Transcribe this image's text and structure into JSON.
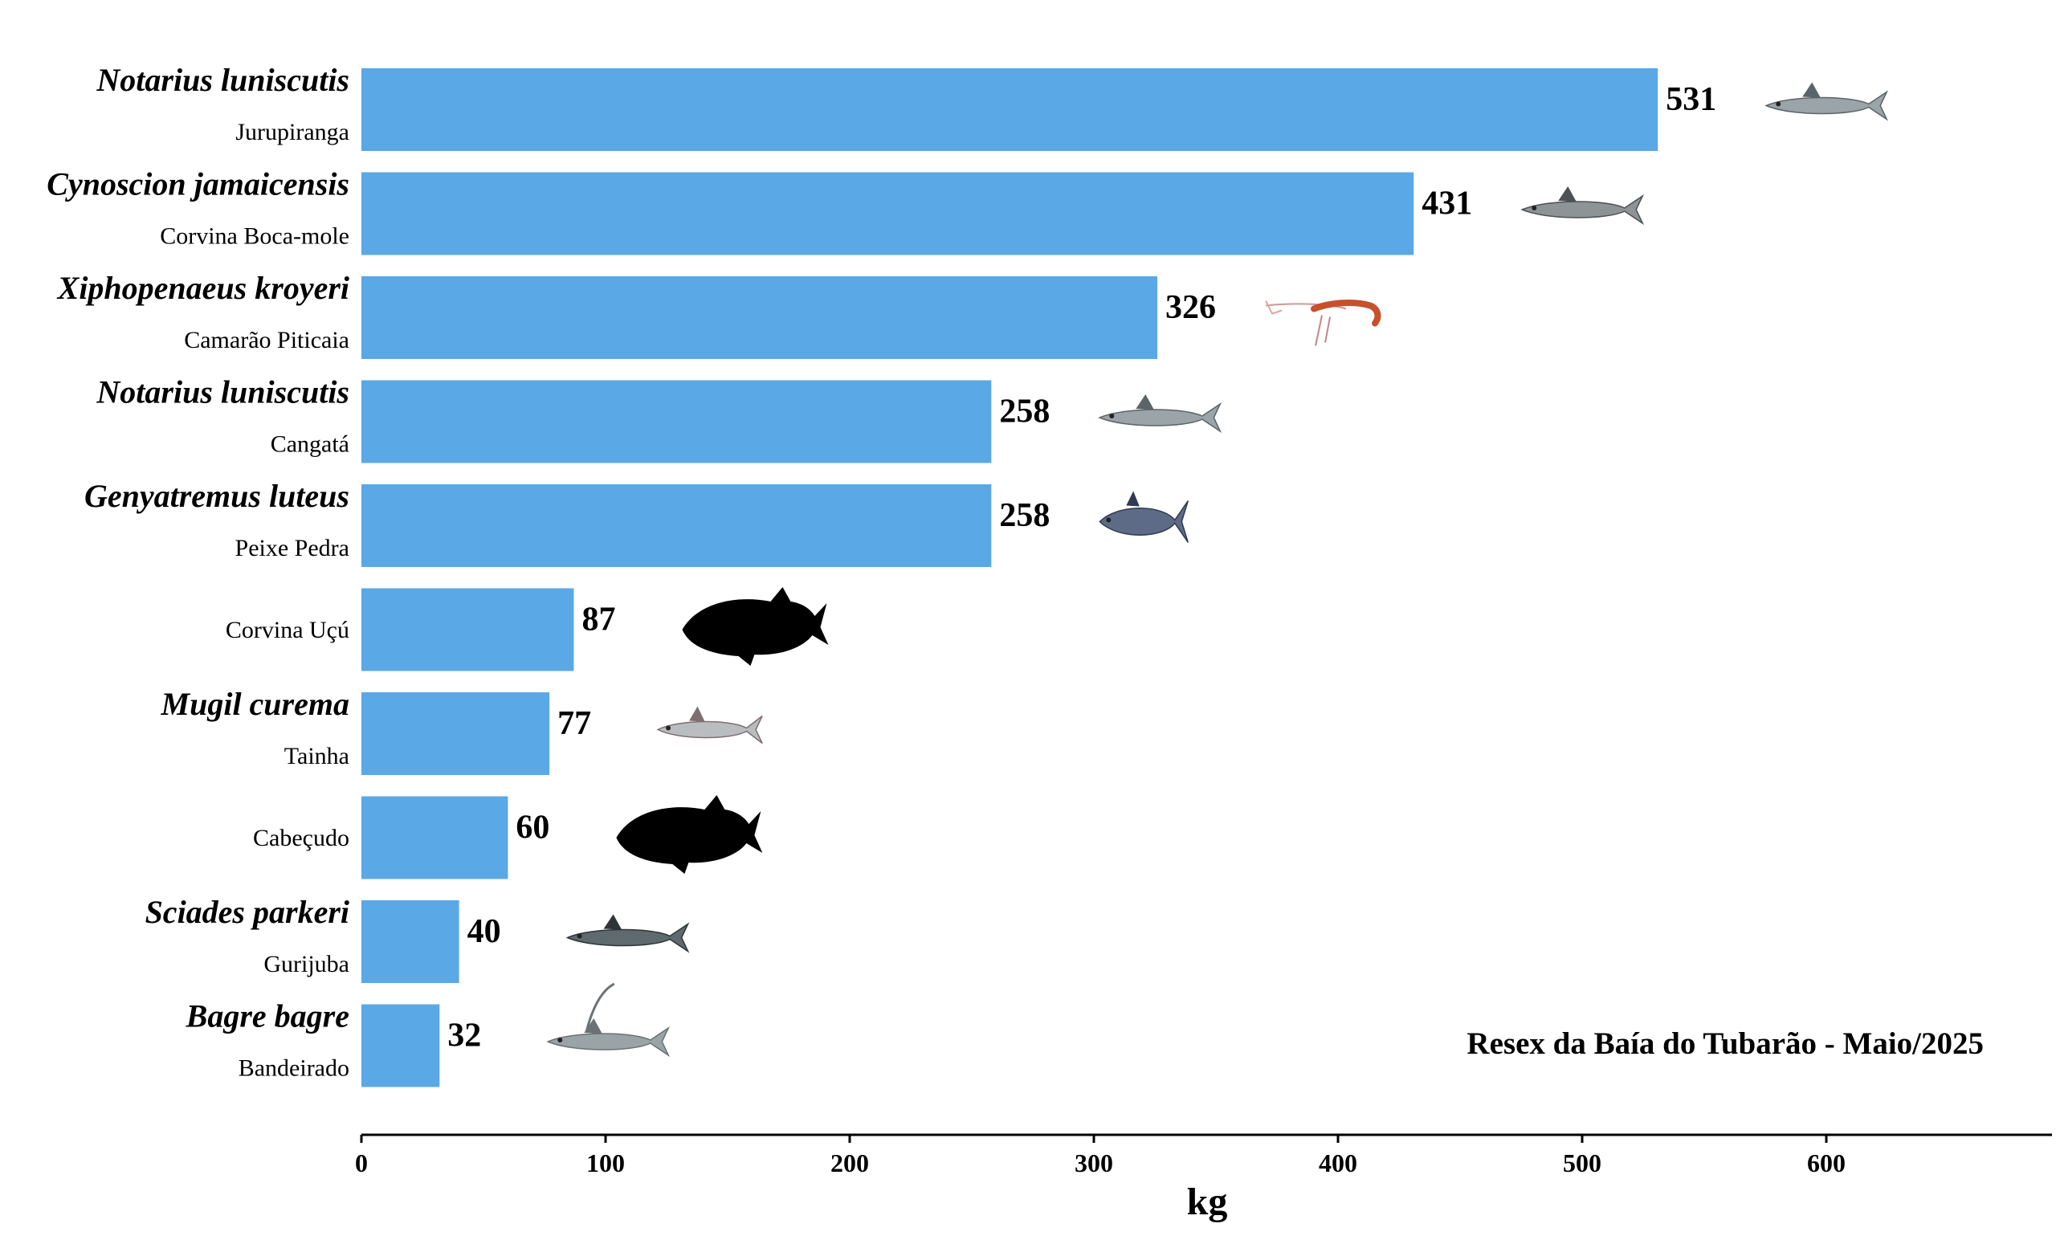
{
  "chart_data": {
    "type": "bar",
    "orientation": "horizontal",
    "title": "",
    "annotation": "Resex da Baía do Tubarão - Maio/2025",
    "xlabel": "kg",
    "ylabel": "",
    "xlim": [
      0,
      690
    ],
    "xticks": [
      0,
      100,
      200,
      300,
      400,
      500,
      600
    ],
    "grid": false,
    "bar_color": "#5aa8e6",
    "categories": [
      {
        "scientific": "Notarius luniscutis",
        "common": "Jurupiranga",
        "value": 531,
        "icon": "catfish-icon"
      },
      {
        "scientific": "Cynoscion jamaicensis",
        "common": "Corvina Boca-mole",
        "value": 431,
        "icon": "weakfish-icon"
      },
      {
        "scientific": "Xiphopenaeus kroyeri",
        "common": "Camarão Piticaia",
        "value": 326,
        "icon": "shrimp-icon"
      },
      {
        "scientific": "Notarius luniscutis",
        "common": "Cangatá",
        "value": 258,
        "icon": "catfish-icon"
      },
      {
        "scientific": "Genyatremus luteus",
        "common": "Peixe Pedra",
        "value": 258,
        "icon": "grunt-fish-icon"
      },
      {
        "scientific": "",
        "common": "Corvina Uçú",
        "value": 87,
        "icon": "fish-silhouette-icon"
      },
      {
        "scientific": "Mugil curema",
        "common": "Tainha",
        "value": 77,
        "icon": "mullet-icon"
      },
      {
        "scientific": "",
        "common": "Cabeçudo",
        "value": 60,
        "icon": "fish-silhouette-icon"
      },
      {
        "scientific": "Sciades parkeri",
        "common": "Gurijuba",
        "value": 40,
        "icon": "catfish-dark-icon"
      },
      {
        "scientific": "Bagre bagre",
        "common": "Bandeirado",
        "value": 32,
        "icon": "flagfin-catfish-icon"
      }
    ]
  }
}
